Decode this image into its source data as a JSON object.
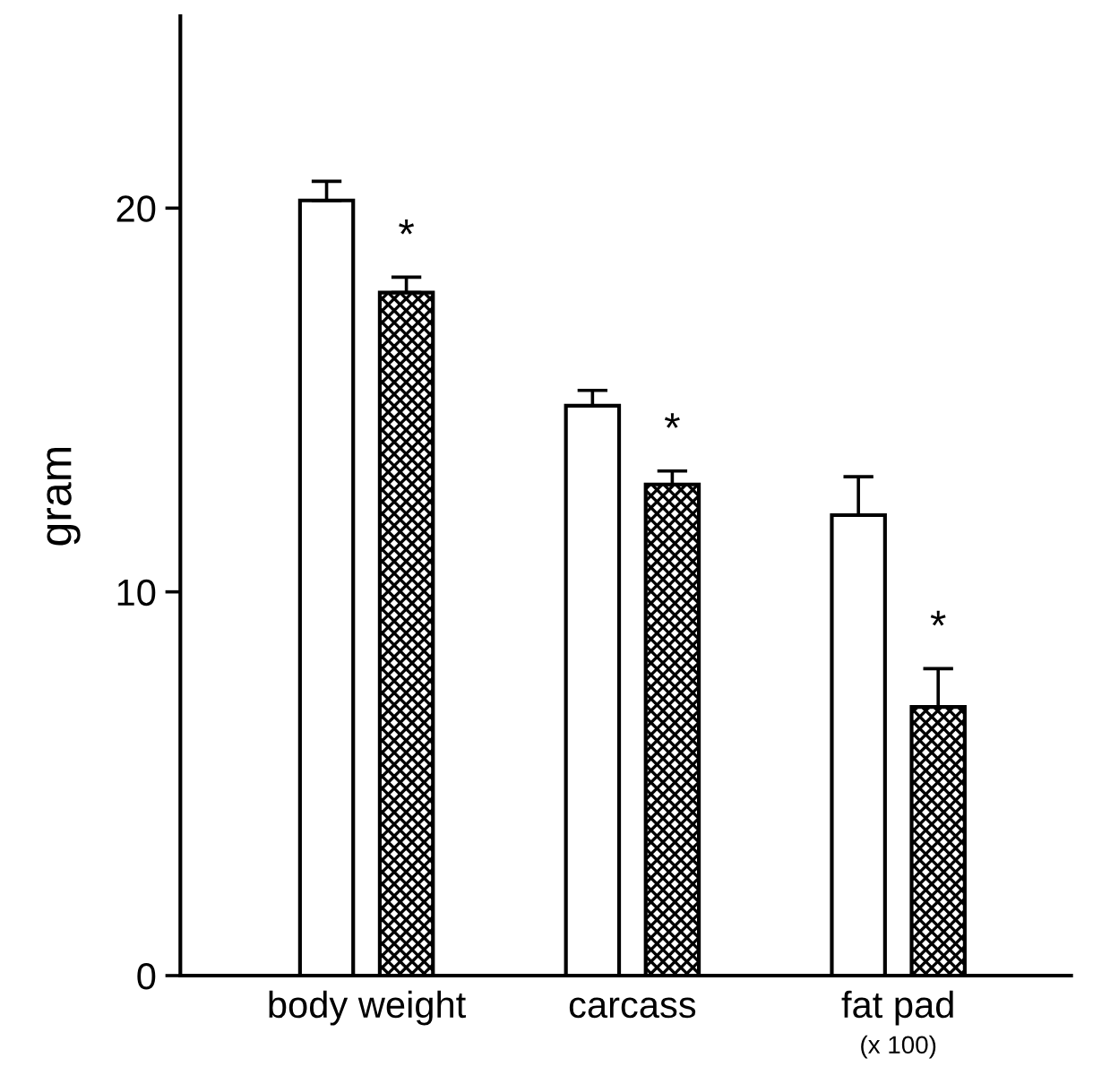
{
  "chart_data": {
    "type": "bar",
    "ylabel": "gram",
    "categories": [
      "body weight",
      "carcass",
      "fat pad"
    ],
    "series": [
      {
        "color": "#ffffff",
        "values": [
          20.2,
          14.85,
          12.0
        ],
        "errors": [
          0.5,
          0.4,
          1.0
        ]
      },
      {
        "color": "#000000",
        "values": [
          17.8,
          12.8,
          7.0
        ],
        "errors": [
          0.4,
          0.35,
          1.0
        ]
      }
    ],
    "ylim": [
      0,
      25
    ],
    "yticks": [
      0,
      10,
      20
    ],
    "grid": false,
    "legend": false,
    "annotations": [
      "*",
      "*",
      "*",
      "(x 100)"
    ]
  }
}
